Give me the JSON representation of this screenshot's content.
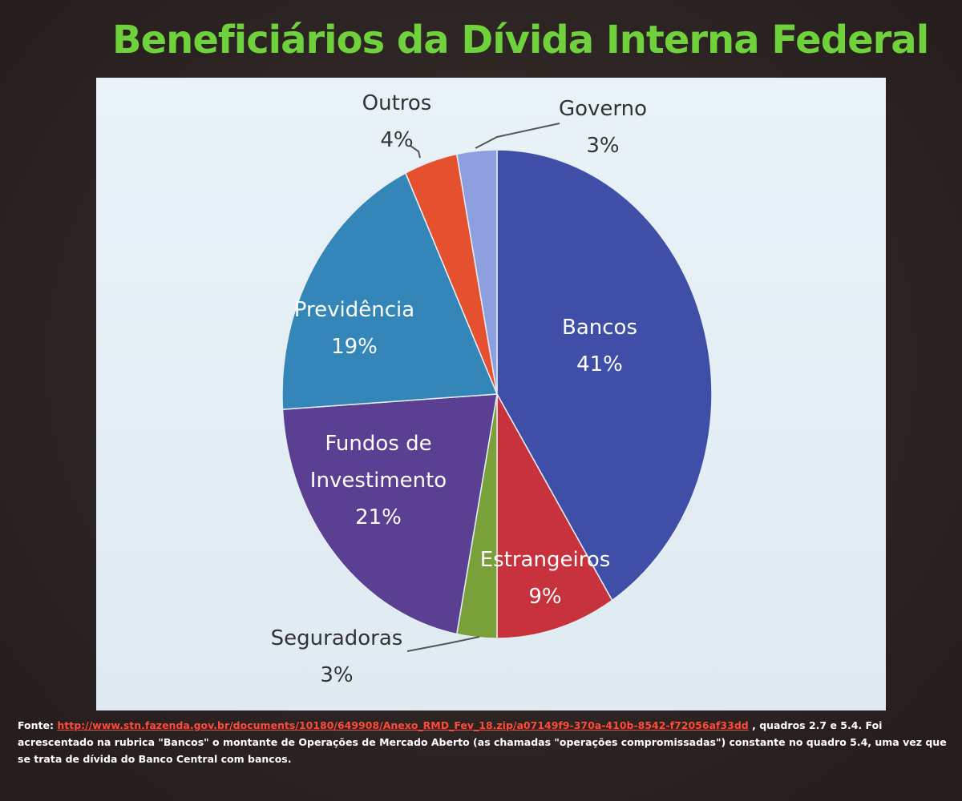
{
  "title": "Beneficiários da Dívida Interna Federal",
  "chart_data": {
    "type": "pie",
    "title": "Beneficiários da Dívida Interna Federal",
    "slices": [
      {
        "name": "Bancos",
        "value": 41,
        "label": "41%",
        "color": "#3f4fa8",
        "label_position": "inside",
        "label_color": "#ffffff"
      },
      {
        "name": "Estrangeiros",
        "value": 9,
        "label": "9%",
        "color": "#c8323c",
        "label_position": "inside",
        "label_color": "#ffffff"
      },
      {
        "name": "Seguradoras",
        "value": 3,
        "label": "3%",
        "color": "#7aa03a",
        "label_position": "outside",
        "label_color": "#333333"
      },
      {
        "name": "Fundos de Investimento",
        "value": 21,
        "label": "21%",
        "color": "#5b3f92",
        "label_position": "inside",
        "label_color": "#ffffff"
      },
      {
        "name": "Previdência",
        "value": 19,
        "label": "19%",
        "color": "#3486b8",
        "label_position": "inside",
        "label_color": "#ffffff"
      },
      {
        "name": "Outros",
        "value": 4,
        "label": "4%",
        "color": "#e5512e",
        "label_position": "outside",
        "label_color": "#333333"
      },
      {
        "name": "Governo",
        "value": 3,
        "label": "3%",
        "color": "#8e9fe0",
        "label_position": "outside",
        "label_color": "#333333"
      }
    ]
  },
  "footer": {
    "lead": "Fonte:",
    "link": "http://www.stn.fazenda.gov.br/documents/10180/649908/Anexo_RMD_Fev_18.zip/a07149f9-370a-410b-8542-f72056af33dd",
    "rest": ", quadros 2.7 e 5.4. Foi acrescentado na rubrica \"Bancos\" o montante de Operações de Mercado Aberto (as chamadas \"operações compromissadas\") constante no quadro 5.4, uma vez que se trata de dívida do Banco Central com bancos."
  }
}
